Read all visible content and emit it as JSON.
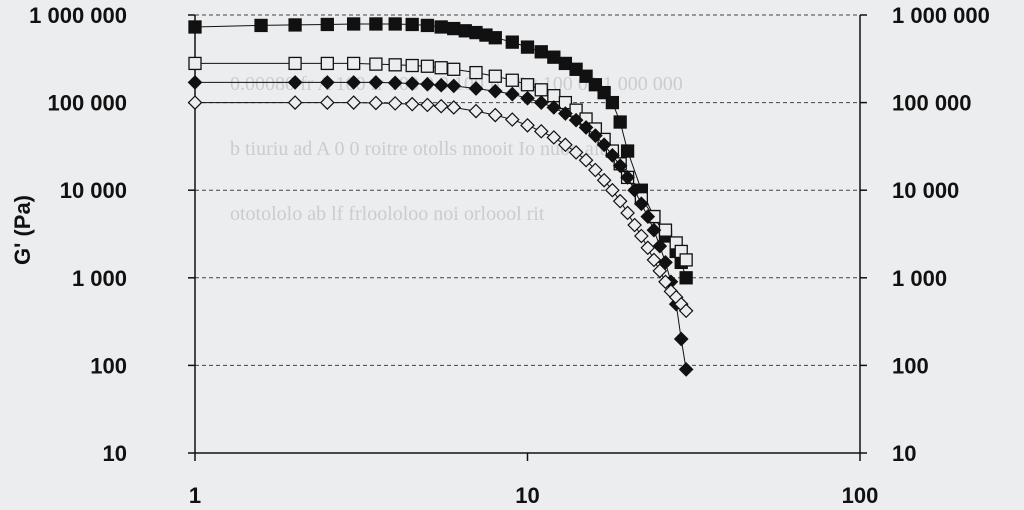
{
  "colors": {
    "background": "#ecedef",
    "ink": "#111111",
    "grid": "#444444",
    "bleed_text": "#c9ccd1"
  },
  "background_text": [
    "0.00080 fr A 100 fr 100 0.0 100 fr 10 t 100 00 1 000 000",
    "b tiuriu ad A 0 0 roitre otolls nnooit Io nuoo ait",
    "ototololo ab lf frloololoo noi orloool rit"
  ],
  "chart_data": {
    "type": "scatter",
    "title": "",
    "xlabel": "",
    "ylabel": "G' (Pa)",
    "x_scale": "log",
    "y_scale": "log",
    "xlim": [
      1,
      100
    ],
    "ylim": [
      10,
      1000000
    ],
    "x_ticks": [
      1,
      10,
      100
    ],
    "x_tick_labels": [
      "1",
      "10",
      "100"
    ],
    "y_ticks": [
      1000000,
      100000,
      10000,
      1000,
      100,
      10
    ],
    "y_tick_labels": [
      "1 000 000",
      "100 000",
      "10 000",
      "1 000",
      "100",
      "10"
    ],
    "right_y_tick_labels": [
      "1 000 000",
      "100 000",
      "10 000",
      "1 000",
      "100",
      "10"
    ],
    "grid": {
      "horizontal": true,
      "style": "dashed"
    },
    "legend": "none",
    "series": [
      {
        "marker": "square-filled",
        "x": [
          1,
          1.58,
          2.0,
          2.5,
          3.0,
          3.5,
          4.0,
          4.5,
          5.0,
          5.5,
          6.0,
          6.5,
          7.0,
          7.5,
          8.0,
          9.0,
          10.0,
          11.0,
          12.0,
          13.0,
          14.0,
          15.0,
          16.0,
          17.0,
          18.0,
          19.0,
          20.0,
          22.0,
          24.0,
          26.0,
          28.0,
          29.0,
          30.0
        ],
        "y": [
          730000,
          760000,
          770000,
          780000,
          790000,
          790000,
          790000,
          780000,
          760000,
          730000,
          700000,
          660000,
          630000,
          590000,
          550000,
          490000,
          430000,
          380000,
          330000,
          280000,
          240000,
          200000,
          160000,
          130000,
          100000,
          60000,
          28000,
          10000,
          5000,
          3000,
          2000,
          1500,
          1000
        ]
      },
      {
        "marker": "square-open",
        "x": [
          1,
          2.0,
          2.5,
          3.0,
          3.5,
          4.0,
          4.5,
          5.0,
          5.5,
          6.0,
          7.0,
          8.0,
          9.0,
          10.0,
          11.0,
          12.0,
          13.0,
          14.0,
          15.0,
          16.0,
          17.0,
          18.0,
          19.0,
          20.0,
          22.0,
          24.0,
          26.0,
          28.0,
          29.0,
          30.0
        ],
        "y": [
          280000,
          280000,
          280000,
          280000,
          275000,
          270000,
          265000,
          260000,
          250000,
          240000,
          220000,
          200000,
          180000,
          160000,
          140000,
          120000,
          100000,
          82000,
          65000,
          50000,
          38000,
          28000,
          20000,
          14000,
          8000,
          5000,
          3500,
          2500,
          2000,
          1600
        ]
      },
      {
        "marker": "diamond-filled",
        "x": [
          1,
          2.0,
          2.5,
          3.0,
          3.5,
          4.0,
          4.5,
          5.0,
          5.5,
          6.0,
          7.0,
          8.0,
          9.0,
          10.0,
          11.0,
          12.0,
          13.0,
          14.0,
          15.0,
          16.0,
          17.0,
          18.0,
          19.0,
          20.0,
          21.0,
          22.0,
          23.0,
          24.0,
          25.0,
          26.0,
          27.0,
          28.0,
          29.0,
          30.0
        ],
        "y": [
          170000,
          170000,
          170000,
          170000,
          170000,
          168000,
          165000,
          162000,
          158000,
          155000,
          145000,
          135000,
          125000,
          112000,
          100000,
          88000,
          75000,
          63000,
          52000,
          42000,
          33000,
          25000,
          19000,
          14000,
          10000,
          7000,
          5000,
          3500,
          2300,
          1500,
          900,
          500,
          200,
          90
        ]
      },
      {
        "marker": "diamond-open",
        "x": [
          1,
          2.0,
          2.5,
          3.0,
          3.5,
          4.0,
          4.5,
          5.0,
          5.5,
          6.0,
          7.0,
          8.0,
          9.0,
          10.0,
          11.0,
          12.0,
          13.0,
          14.0,
          15.0,
          16.0,
          17.0,
          18.0,
          19.0,
          20.0,
          21.0,
          22.0,
          23.0,
          24.0,
          25.0,
          26.0,
          27.0,
          28.0,
          29.0,
          30.0
        ],
        "y": [
          100000,
          100000,
          100000,
          100000,
          99000,
          98000,
          96000,
          94000,
          91000,
          88000,
          80000,
          72000,
          64000,
          55000,
          47000,
          40000,
          33000,
          27000,
          22000,
          17000,
          13000,
          10000,
          7500,
          5500,
          4000,
          3000,
          2200,
          1600,
          1200,
          900,
          700,
          600,
          500,
          420
        ]
      }
    ]
  }
}
